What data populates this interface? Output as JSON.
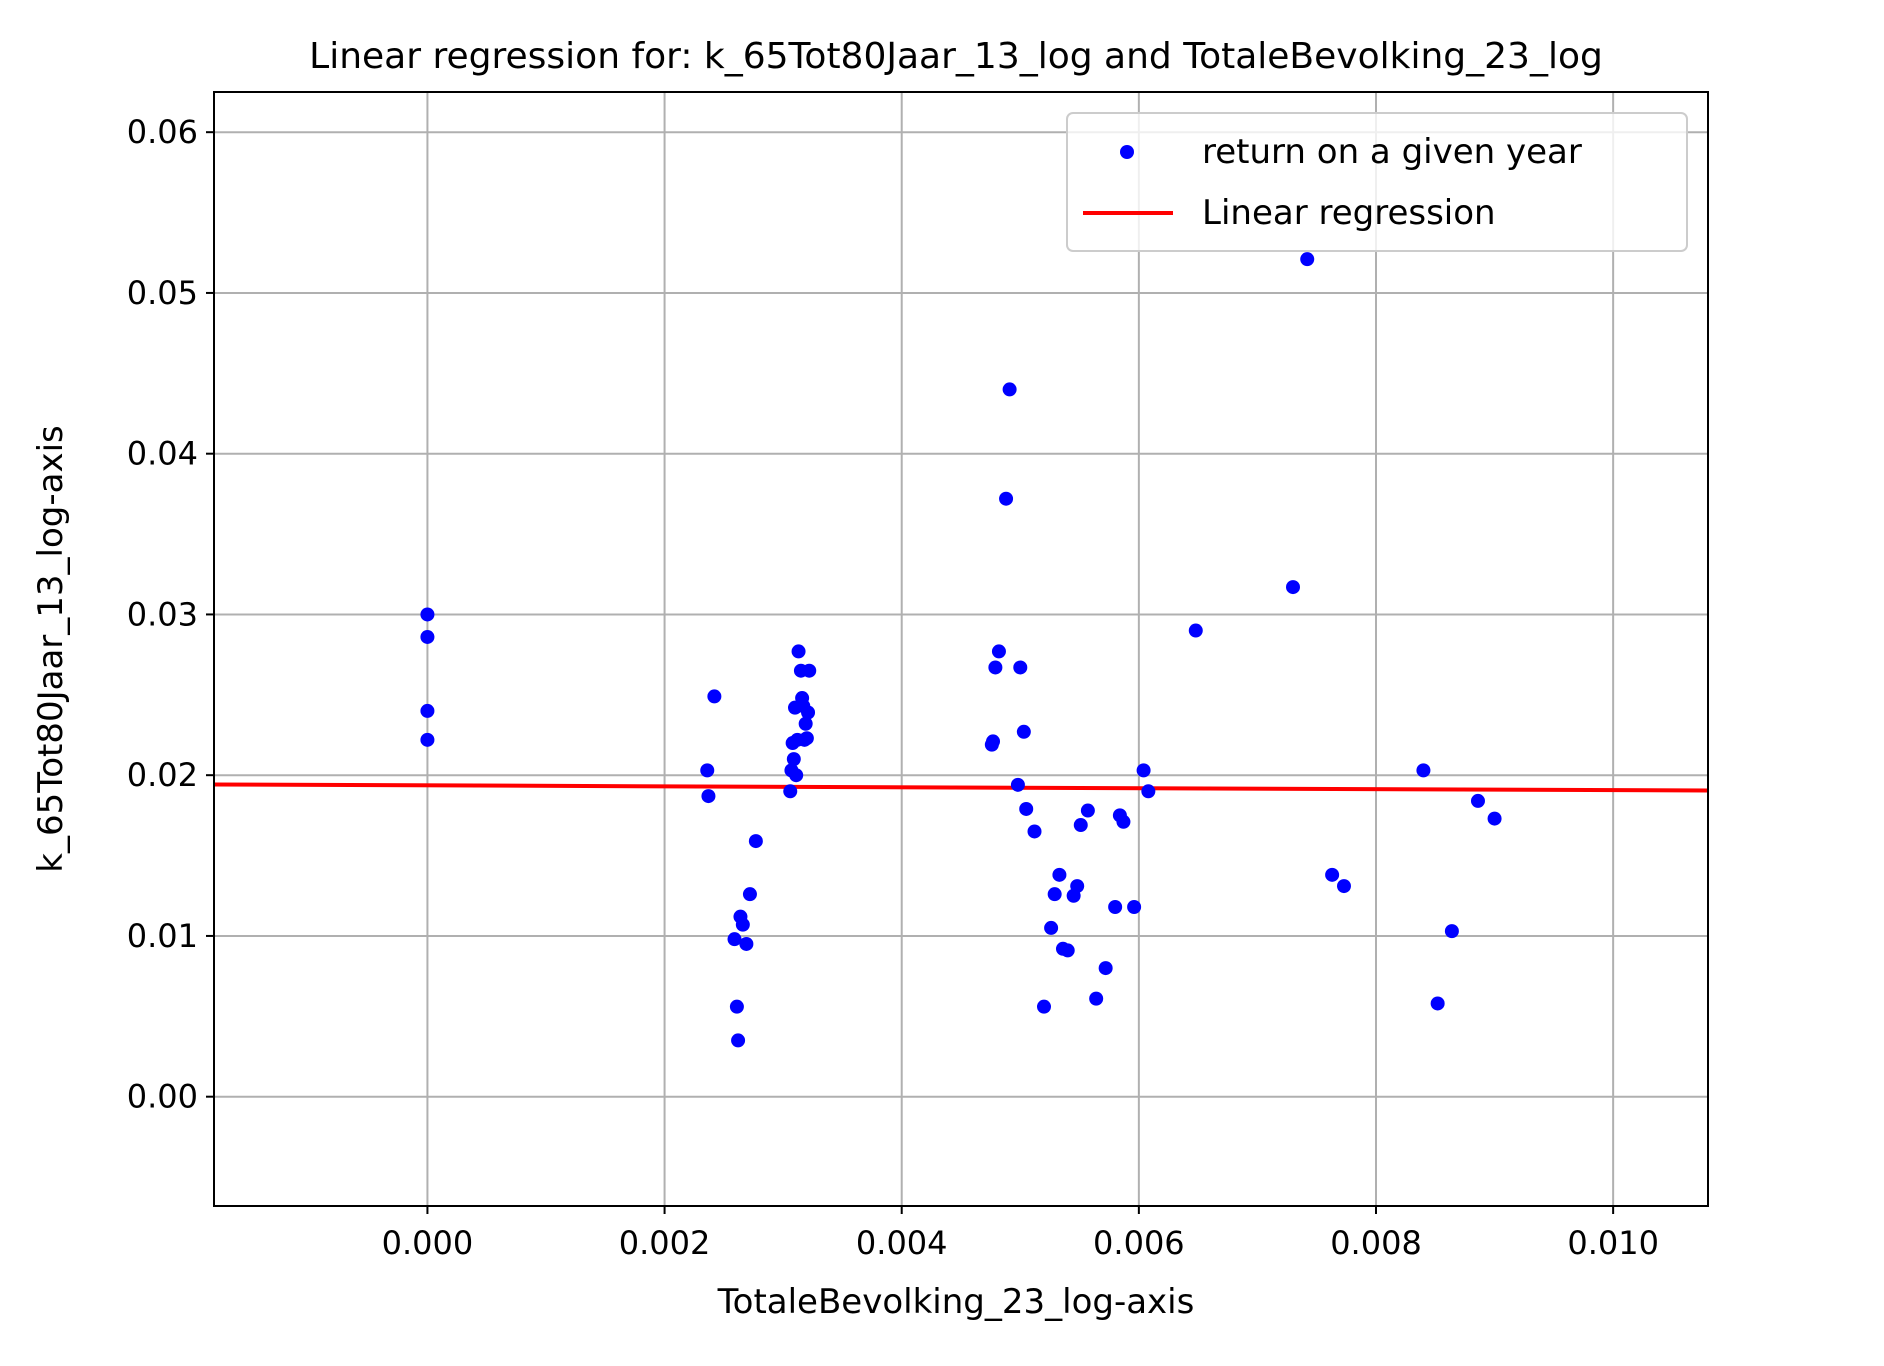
{
  "chart_data": {
    "type": "scatter",
    "title": "Linear regression for: k_65Tot80Jaar_13_log and TotaleBevolking_23_log",
    "xlabel": "TotaleBevolking_23_log-axis",
    "ylabel": "k_65Tot80Jaar_13_log-axis",
    "xlim": [
      -0.0018,
      0.0108
    ],
    "ylim": [
      -0.0068,
      0.0625
    ],
    "x_ticks": [
      0.0,
      0.002,
      0.004,
      0.006,
      0.008,
      0.01
    ],
    "x_tick_labels": [
      "0.000",
      "0.002",
      "0.004",
      "0.006",
      "0.008",
      "0.010"
    ],
    "y_ticks": [
      0.0,
      0.01,
      0.02,
      0.03,
      0.04,
      0.05,
      0.06
    ],
    "y_tick_labels": [
      "0.00",
      "0.01",
      "0.02",
      "0.03",
      "0.04",
      "0.05",
      "0.06"
    ],
    "grid": true,
    "legend": {
      "position": "top-right",
      "entries": [
        {
          "label": "return on a given year",
          "kind": "marker",
          "color": "#0000ff"
        },
        {
          "label": "Linear regression",
          "kind": "line",
          "color": "#ff0000"
        }
      ]
    },
    "series": [
      {
        "name": "return on a given year",
        "type": "scatter",
        "color": "#0000ff",
        "points": [
          [
            0.0,
            0.03
          ],
          [
            0.0,
            0.0286
          ],
          [
            0.0,
            0.024
          ],
          [
            0.0,
            0.0222
          ],
          [
            0.00236,
            0.0203
          ],
          [
            0.00237,
            0.0187
          ],
          [
            0.00242,
            0.0249
          ],
          [
            0.00259,
            0.0098
          ],
          [
            0.00261,
            0.0056
          ],
          [
            0.00262,
            0.0035
          ],
          [
            0.00264,
            0.0112
          ],
          [
            0.00266,
            0.0107
          ],
          [
            0.00269,
            0.0095
          ],
          [
            0.00272,
            0.0126
          ],
          [
            0.00277,
            0.0159
          ],
          [
            0.00306,
            0.019
          ],
          [
            0.00307,
            0.0203
          ],
          [
            0.00308,
            0.022
          ],
          [
            0.00309,
            0.021
          ],
          [
            0.0031,
            0.0242
          ],
          [
            0.00311,
            0.02
          ],
          [
            0.00312,
            0.0222
          ],
          [
            0.00313,
            0.0277
          ],
          [
            0.00315,
            0.0265
          ],
          [
            0.00316,
            0.0248
          ],
          [
            0.00317,
            0.0243
          ],
          [
            0.00318,
            0.0222
          ],
          [
            0.00319,
            0.0232
          ],
          [
            0.0032,
            0.0223
          ],
          [
            0.00321,
            0.0239
          ],
          [
            0.00322,
            0.0265
          ],
          [
            0.00476,
            0.0219
          ],
          [
            0.00477,
            0.0221
          ],
          [
            0.00479,
            0.0267
          ],
          [
            0.00482,
            0.0277
          ],
          [
            0.00488,
            0.0372
          ],
          [
            0.00491,
            0.044
          ],
          [
            0.00498,
            0.0194
          ],
          [
            0.005,
            0.0267
          ],
          [
            0.00503,
            0.0227
          ],
          [
            0.00505,
            0.0179
          ],
          [
            0.00512,
            0.0165
          ],
          [
            0.0052,
            0.0056
          ],
          [
            0.00526,
            0.0105
          ],
          [
            0.00529,
            0.0126
          ],
          [
            0.00533,
            0.0138
          ],
          [
            0.00536,
            0.0092
          ],
          [
            0.0054,
            0.0091
          ],
          [
            0.00545,
            0.0125
          ],
          [
            0.00548,
            0.0131
          ],
          [
            0.00551,
            0.0169
          ],
          [
            0.00557,
            0.0178
          ],
          [
            0.00564,
            0.0061
          ],
          [
            0.00572,
            0.008
          ],
          [
            0.0058,
            0.0118
          ],
          [
            0.00584,
            0.0175
          ],
          [
            0.00587,
            0.0171
          ],
          [
            0.00596,
            0.0118
          ],
          [
            0.00604,
            0.0203
          ],
          [
            0.00608,
            0.019
          ],
          [
            0.00648,
            0.029
          ],
          [
            0.0073,
            0.0317
          ],
          [
            0.00742,
            0.0521
          ],
          [
            0.00763,
            0.0138
          ],
          [
            0.00773,
            0.0131
          ],
          [
            0.0084,
            0.0203
          ],
          [
            0.00852,
            0.0058
          ],
          [
            0.00864,
            0.0103
          ],
          [
            0.00886,
            0.0184
          ],
          [
            0.009,
            0.0173
          ]
        ]
      },
      {
        "name": "Linear regression",
        "type": "line",
        "color": "#ff0000",
        "points": [
          [
            -0.0018,
            0.01942
          ],
          [
            0.0108,
            0.01905
          ]
        ]
      }
    ]
  }
}
